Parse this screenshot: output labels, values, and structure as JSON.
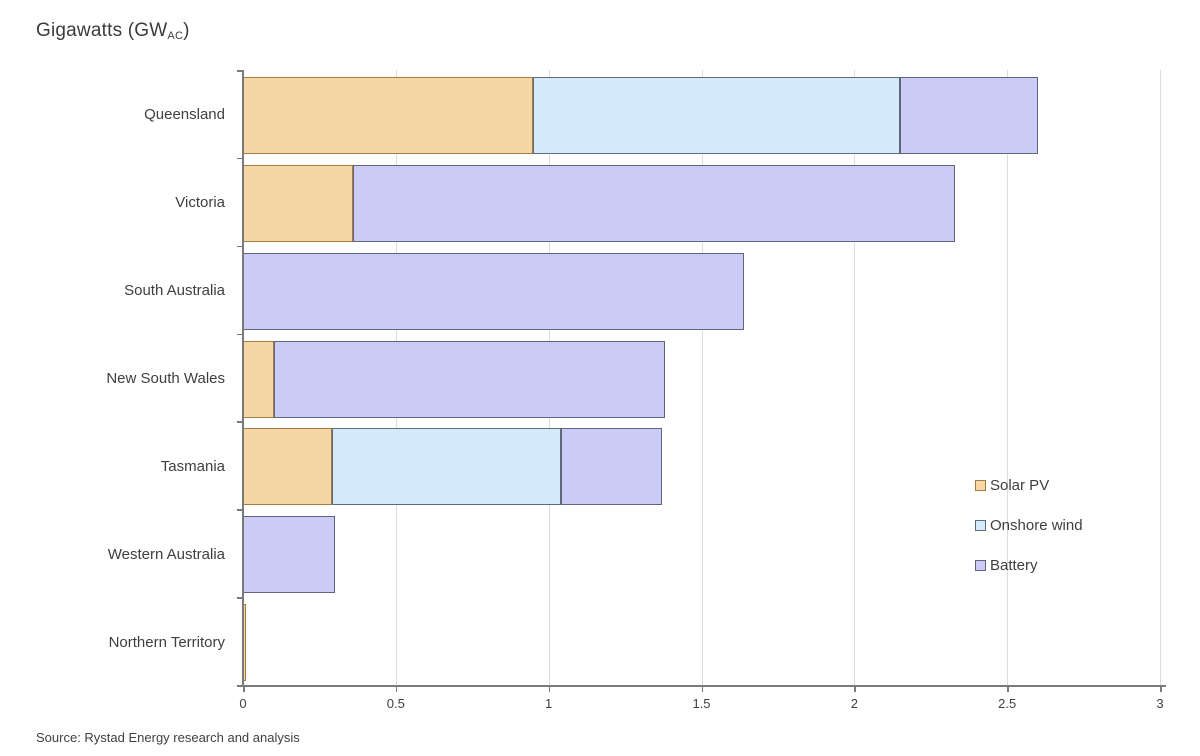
{
  "title": {
    "prefix": "Gigawatts (GW",
    "subscript": "AC",
    "suffix": ")"
  },
  "source": "Source: Rystad Energy research and analysis",
  "chart_data": {
    "type": "bar",
    "orientation": "horizontal",
    "stacked": true,
    "title": "Gigawatts (GW AC)",
    "categories": [
      "Queensland",
      "Victoria",
      "South Australia",
      "New South Wales",
      "Tasmania",
      "Western Australia",
      "Northern Territory"
    ],
    "series": [
      {
        "name": "Solar PV",
        "color": "#f7d6a6",
        "border_color": "#a27c43",
        "values": [
          0.95,
          0.36,
          0,
          0.1,
          0.29,
          0,
          0.01
        ]
      },
      {
        "name": "Onshore wind",
        "color": "#d4e9fa",
        "border_color": "#5e6b7a",
        "values": [
          1.2,
          0,
          0,
          0,
          0.75,
          0,
          0
        ]
      },
      {
        "name": "Battery",
        "color": "#cbccf5",
        "border_color": "#60647e",
        "values": [
          0.45,
          1.97,
          1.64,
          1.28,
          0.33,
          0.3,
          0
        ]
      }
    ],
    "totals": [
      2.6,
      2.33,
      1.64,
      1.38,
      1.37,
      0.3,
      0.01
    ],
    "xlim": [
      0,
      3
    ],
    "xticks": [
      0,
      0.5,
      1,
      1.5,
      2,
      2.5,
      3
    ],
    "xtick_labels": [
      "0",
      "0.5",
      "1",
      "1.5",
      "2",
      "2.5",
      "3"
    ],
    "grid": true,
    "legend_position": "right-middle"
  },
  "legend": {
    "items": [
      {
        "label": "Solar PV"
      },
      {
        "label": "Onshore wind"
      },
      {
        "label": "Battery"
      }
    ]
  }
}
